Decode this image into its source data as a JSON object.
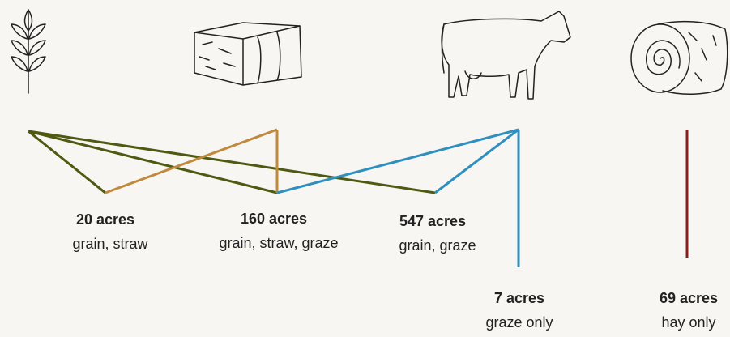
{
  "nodes": [
    {
      "title": "20 acres",
      "uses": "grain, straw"
    },
    {
      "title": "160 acres",
      "uses": "grain, straw, graze"
    },
    {
      "title": "547 acres",
      "uses": "grain, graze"
    },
    {
      "title": "7 acres",
      "uses": "graze only"
    },
    {
      "title": "69 acres",
      "uses": "hay only"
    }
  ]
}
